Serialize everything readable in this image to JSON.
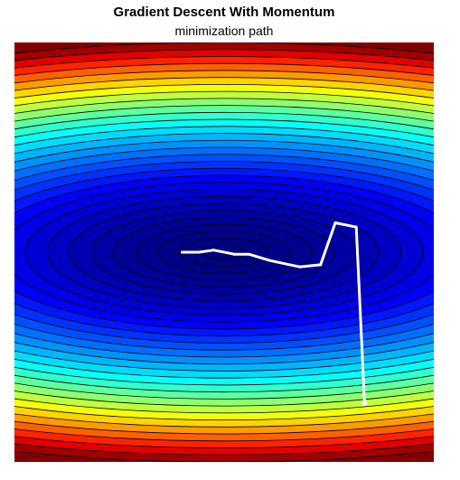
{
  "chart_data": {
    "type": "contour",
    "title": "Gradient Descent With Momentum",
    "subtitle": "minimization path",
    "xlabel": "",
    "ylabel": "",
    "xlim": [
      -10,
      10
    ],
    "ylim": [
      -10,
      10
    ],
    "function": "f(x, y) = 0.2*x^2 + 2*y^2",
    "colormap": "jet",
    "levels": 30,
    "contour_line_color": "#000000",
    "path_color": "#ffffff",
    "grid": false,
    "legend": "none",
    "series": [
      {
        "type": "path",
        "x": [
          6.7,
          6.3,
          5.3,
          4.6,
          3.6,
          2.2,
          1.2,
          0.5,
          -0.5,
          -1.2,
          -2.0
        ],
        "y": [
          -7.2,
          1.2,
          1.4,
          -0.6,
          -0.7,
          -0.4,
          -0.1,
          -0.1,
          0.1,
          0.0,
          0.0
        ]
      }
    ]
  }
}
